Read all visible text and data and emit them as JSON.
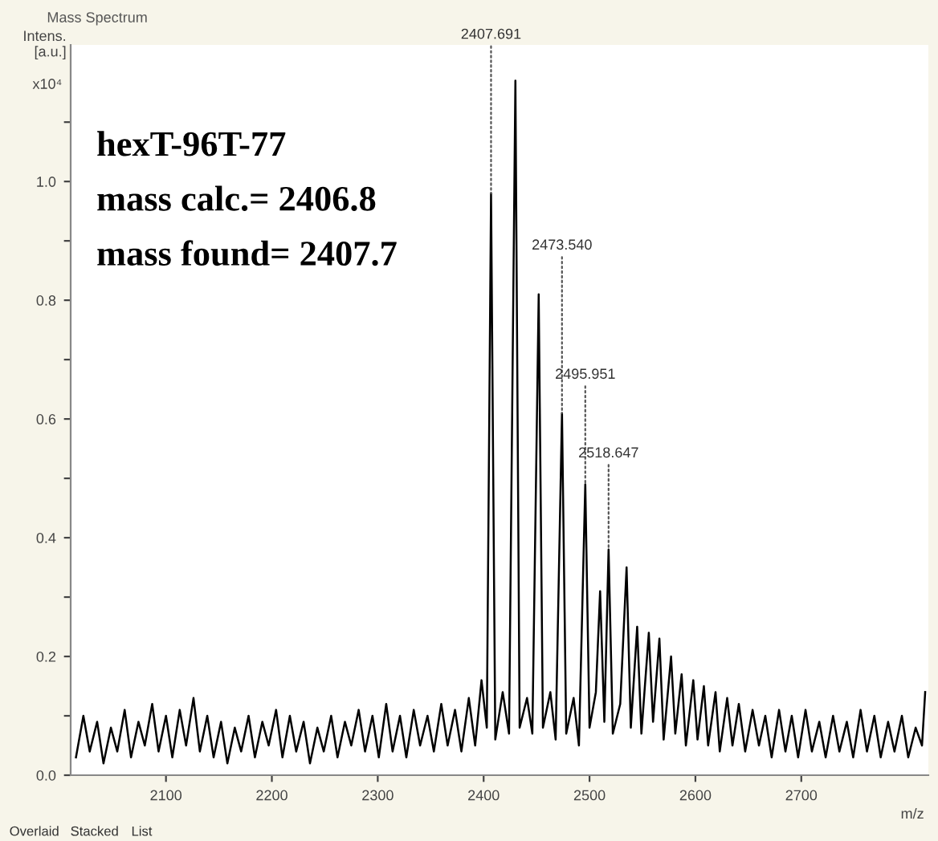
{
  "chart_data": {
    "type": "line",
    "title": "Mass Spectrum",
    "ylabel": "Intens.\n[a.u.]",
    "xlabel": "m/z",
    "annotations": [
      "x10⁴",
      "hexT-96T-77",
      "mass calc.= 2406.8",
      "mass found= 2407.7",
      {
        "text": "2407.691",
        "x": 2407,
        "y": 0.98
      },
      {
        "text": "2473.540",
        "x": 2474,
        "y": 0.61
      },
      {
        "text": "2495.951",
        "x": 2496,
        "y": 0.49
      },
      {
        "text": "2518.647",
        "x": 2518,
        "y": 0.38
      },
      "Overlaid",
      "Stacked",
      "List"
    ],
    "xlim": [
      2010,
      2820
    ],
    "ylim": [
      0,
      1.23
    ],
    "xticks": [
      2100,
      2200,
      2300,
      2400,
      2500,
      2600,
      2700
    ],
    "yticks": [
      {
        "value": 0,
        "label": "0.0"
      },
      {
        "value": 0.1,
        "label": null
      },
      0.2,
      {
        "value": 0.3,
        "label": null
      },
      0.4,
      {
        "value": 0.5,
        "label": null
      },
      0.6,
      {
        "value": 0.7,
        "label": null
      },
      0.8,
      {
        "value": 0.9,
        "label": null
      },
      {
        "value": 1.0,
        "label": "1.0"
      },
      {
        "value": 1.1,
        "label": null
      }
    ],
    "grid": false,
    "legend": false,
    "marker": "none",
    "line_style": "solid",
    "series": [
      {
        "color": "#000000",
        "x": [
          2015,
          2022,
          2028,
          2035,
          2041,
          2048,
          2054,
          2061,
          2067,
          2074,
          2080,
          2087,
          2093,
          2100,
          2106,
          2113,
          2119,
          2126,
          2132,
          2139,
          2145,
          2152,
          2158,
          2165,
          2171,
          2178,
          2184,
          2191,
          2197,
          2204,
          2210,
          2217,
          2223,
          2230,
          2236,
          2243,
          2249,
          2256,
          2262,
          2269,
          2275,
          2282,
          2288,
          2295,
          2301,
          2308,
          2314,
          2321,
          2327,
          2334,
          2340,
          2347,
          2353,
          2360,
          2366,
          2373,
          2379,
          2386,
          2392,
          2398,
          2403,
          2407,
          2411,
          2418,
          2424,
          2430,
          2434,
          2441,
          2446,
          2452,
          2456,
          2463,
          2468,
          2474,
          2478,
          2485,
          2490,
          2496,
          2500,
          2506,
          2510,
          2514,
          2518,
          2522,
          2529,
          2535,
          2539,
          2545,
          2549,
          2556,
          2560,
          2566,
          2570,
          2577,
          2581,
          2587,
          2591,
          2598,
          2602,
          2608,
          2612,
          2619,
          2623,
          2630,
          2635,
          2641,
          2647,
          2654,
          2660,
          2666,
          2672,
          2679,
          2685,
          2691,
          2697,
          2704,
          2710,
          2717,
          2723,
          2730,
          2736,
          2743,
          2749,
          2756,
          2762,
          2769,
          2775,
          2782,
          2788,
          2795,
          2801,
          2808,
          2814,
          2817
        ],
        "values": [
          0.03,
          0.1,
          0.04,
          0.09,
          0.02,
          0.08,
          0.04,
          0.11,
          0.03,
          0.09,
          0.05,
          0.12,
          0.04,
          0.1,
          0.03,
          0.11,
          0.05,
          0.13,
          0.04,
          0.1,
          0.03,
          0.09,
          0.02,
          0.08,
          0.04,
          0.1,
          0.03,
          0.09,
          0.05,
          0.11,
          0.03,
          0.1,
          0.04,
          0.09,
          0.02,
          0.08,
          0.04,
          0.1,
          0.03,
          0.09,
          0.05,
          0.11,
          0.04,
          0.1,
          0.03,
          0.12,
          0.04,
          0.1,
          0.03,
          0.11,
          0.05,
          0.1,
          0.04,
          0.12,
          0.05,
          0.11,
          0.04,
          0.13,
          0.05,
          0.16,
          0.08,
          0.98,
          0.06,
          0.14,
          0.07,
          1.17,
          0.08,
          0.13,
          0.07,
          0.81,
          0.08,
          0.14,
          0.06,
          0.61,
          0.07,
          0.13,
          0.05,
          0.49,
          0.08,
          0.14,
          0.31,
          0.09,
          0.38,
          0.07,
          0.12,
          0.35,
          0.08,
          0.25,
          0.07,
          0.24,
          0.09,
          0.23,
          0.06,
          0.2,
          0.07,
          0.17,
          0.05,
          0.16,
          0.06,
          0.15,
          0.05,
          0.14,
          0.04,
          0.13,
          0.05,
          0.12,
          0.04,
          0.11,
          0.05,
          0.1,
          0.03,
          0.11,
          0.04,
          0.1,
          0.03,
          0.11,
          0.04,
          0.09,
          0.03,
          0.1,
          0.04,
          0.09,
          0.03,
          0.11,
          0.04,
          0.1,
          0.03,
          0.09,
          0.04,
          0.1,
          0.03,
          0.08,
          0.05,
          0.14
        ]
      }
    ]
  }
}
